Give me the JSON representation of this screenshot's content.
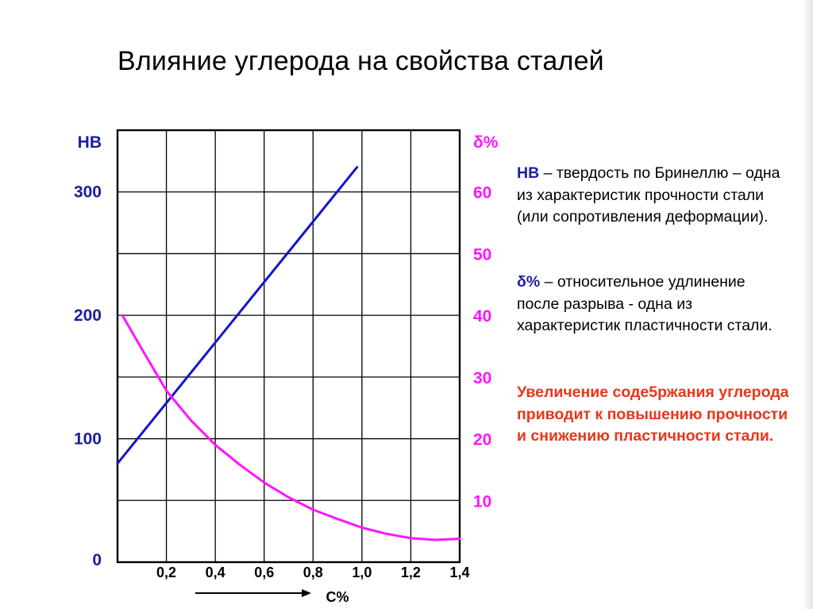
{
  "title": "Влияние углерода на свойства сталей",
  "chart_data": {
    "type": "line",
    "x_label": "C%",
    "x_ticks": [
      "0,2",
      "0,4",
      "0,6",
      "0,8",
      "1,0",
      "1,2",
      "1,4"
    ],
    "x_tick_values": [
      0.2,
      0.4,
      0.6,
      0.8,
      1.0,
      1.2,
      1.4
    ],
    "xlim": [
      0,
      1.4
    ],
    "y_left": {
      "label": "НВ",
      "ticks": [
        "0",
        "100",
        "200",
        "300"
      ],
      "tick_values": [
        0,
        100,
        200,
        300
      ],
      "ylim": [
        0,
        350
      ]
    },
    "y_right": {
      "label": "δ%",
      "ticks": [
        "10",
        "20",
        "30",
        "40",
        "50",
        "60"
      ],
      "tick_values": [
        10,
        20,
        30,
        40,
        50,
        60
      ],
      "ylim": [
        0,
        70
      ]
    },
    "grid": true,
    "series": [
      {
        "name": "НВ",
        "axis": "left",
        "color": "#1414cc",
        "x": [
          0.0,
          0.98
        ],
        "y": [
          80,
          320
        ]
      },
      {
        "name": "δ%",
        "axis": "right",
        "color": "#ff14ff",
        "x": [
          0.02,
          0.1,
          0.2,
          0.3,
          0.4,
          0.5,
          0.6,
          0.7,
          0.8,
          0.9,
          1.0,
          1.1,
          1.2,
          1.3,
          1.4
        ],
        "y": [
          40,
          34.5,
          27.8,
          23.0,
          19.0,
          15.8,
          12.9,
          10.5,
          8.5,
          7.0,
          5.6,
          4.6,
          3.9,
          3.6,
          3.8
        ]
      }
    ]
  },
  "legend_text": {
    "hb_term": "НВ",
    "hb_desc": " – твердость по Бринеллю – одна из характеристик прочности стали (или сопротивления деформации).",
    "delta_term": "δ%",
    "delta_desc": " – относительное удлинение после разрыва -  одна из характеристик пластичности стали.",
    "conclusion": "Увеличение соде5ржания углерода приводит к повышению прочности и снижению пластичности стали."
  },
  "colors": {
    "axis_label_blue": "#1a1f9e",
    "axis_label_magenta": "#ff14ff",
    "conclusion_red": "#e8361a"
  }
}
